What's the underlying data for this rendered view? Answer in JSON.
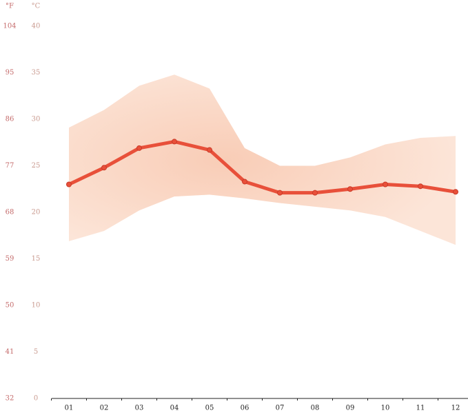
{
  "chart_data": {
    "type": "line",
    "header_f": "°F",
    "header_c": "°C",
    "categories": [
      "01",
      "02",
      "03",
      "04",
      "05",
      "06",
      "07",
      "08",
      "09",
      "10",
      "11",
      "12"
    ],
    "values": [
      23.0,
      24.8,
      26.9,
      27.6,
      26.7,
      23.3,
      22.1,
      22.1,
      22.5,
      23.0,
      22.8,
      22.2
    ],
    "band_high": [
      29.1,
      31.0,
      33.6,
      34.8,
      33.3,
      26.9,
      25.0,
      25.0,
      25.9,
      27.3,
      28.0,
      28.2
    ],
    "band_low": [
      16.9,
      18.0,
      20.2,
      21.7,
      21.9,
      21.5,
      21.0,
      20.6,
      20.2,
      19.5,
      18.0,
      16.5
    ],
    "color": "#e8503a",
    "band_color": "#fbdccb",
    "ylim": [
      0,
      40
    ],
    "yticks": [
      0,
      5,
      10,
      15,
      20,
      25,
      30,
      35,
      40
    ],
    "y2lim": [
      32,
      104
    ],
    "y2ticks": [
      32,
      41,
      50,
      59,
      68,
      77,
      86,
      95,
      104
    ]
  }
}
